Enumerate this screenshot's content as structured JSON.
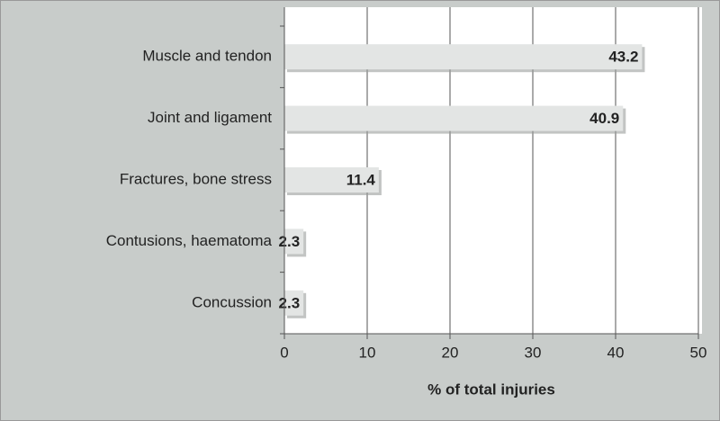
{
  "chart_data": {
    "type": "bar",
    "orientation": "horizontal",
    "categories": [
      "Muscle and tendon",
      "Joint and ligament",
      "Fractures, bone stress",
      "Contusions, haematoma",
      "Concussion"
    ],
    "values": [
      43.2,
      40.9,
      11.4,
      2.3,
      2.3
    ],
    "color": "#e3e5e4",
    "xlabel": "% of total injuries",
    "xlim": [
      0,
      50
    ],
    "xticks": [
      0,
      10,
      20,
      30,
      40,
      50
    ],
    "grid": true
  }
}
